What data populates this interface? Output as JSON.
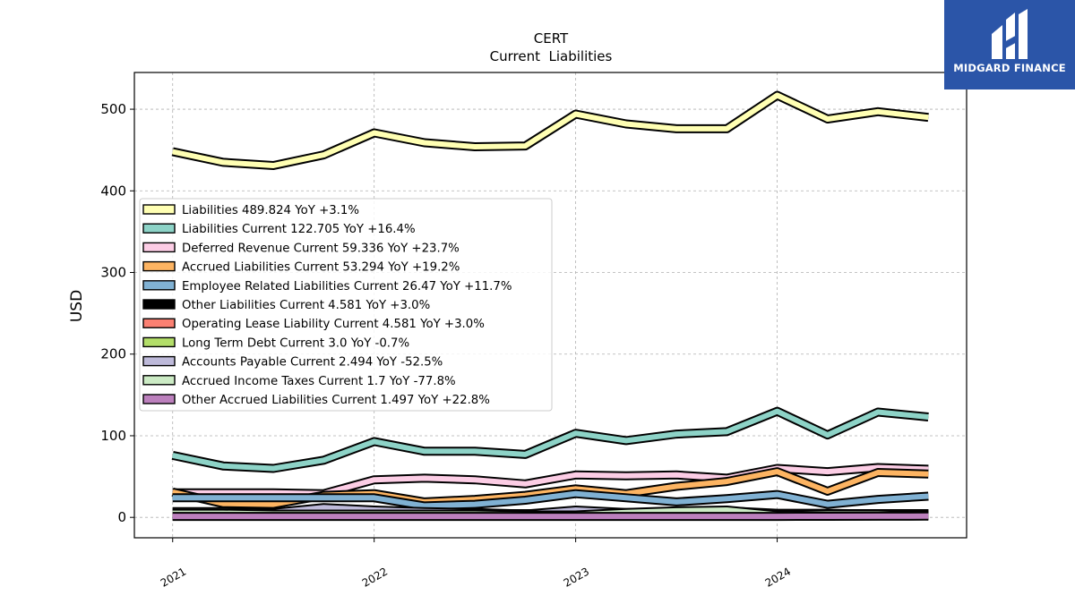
{
  "chart_data": {
    "type": "line",
    "title": "CERT",
    "subtitle": "Current  Liabilities",
    "ylabel": "USD",
    "xlabel": "",
    "ylim": [
      -25,
      545
    ],
    "xlim": [
      2020.81,
      2024.94
    ],
    "yticks": [
      0,
      100,
      200,
      300,
      400,
      500
    ],
    "xticks": [
      {
        "value": 2021.0,
        "label": "2021"
      },
      {
        "value": 2022.0,
        "label": "2022"
      },
      {
        "value": 2023.0,
        "label": "2023"
      },
      {
        "value": 2024.0,
        "label": "2024"
      }
    ],
    "grid": true,
    "legend_position": "center-left",
    "x": [
      2021.0,
      2021.25,
      2021.5,
      2021.75,
      2022.0,
      2022.25,
      2022.5,
      2022.75,
      2023.0,
      2023.25,
      2023.5,
      2023.75,
      2024.0,
      2024.25,
      2024.5,
      2024.75
    ],
    "series": [
      {
        "name": "Liabilities",
        "legend": "Liabilities  489.824 YoY +3.1%",
        "color": "#ffffb3",
        "values": [
          448,
          435,
          431,
          444,
          471,
          459,
          454,
          455,
          494,
          482,
          476,
          476,
          517,
          488,
          497,
          490
        ]
      },
      {
        "name": "Liabilities Current",
        "legend": "Liabilities Current  122.705 YoY +16.4%",
        "color": "#8dd3c7",
        "values": [
          76,
          63,
          60,
          70,
          93,
          81,
          81,
          77,
          103,
          94,
          102,
          105,
          130,
          101,
          129,
          123
        ]
      },
      {
        "name": "Deferred Revenue Current",
        "legend": "Deferred Revenue Current  59.336 YoY +23.7%",
        "color": "#fccde5",
        "values": [
          30,
          30,
          30,
          29,
          46,
          48,
          46,
          41,
          52,
          51,
          52,
          48,
          60,
          56,
          61,
          59
        ]
      },
      {
        "name": "Accrued Liabilities Current",
        "legend": "Accrued Liabilities Current  53.294 YoY +19.2%",
        "color": "#fdb462",
        "values": [
          31,
          17,
          16,
          27,
          29,
          19,
          22,
          27,
          35,
          29,
          38,
          44,
          56,
          32,
          55,
          53
        ]
      },
      {
        "name": "Employee Related Liabilities Current",
        "legend": "Employee Related Liabilities Current  26.47 YoY +11.7%",
        "color": "#80b1d3",
        "values": [
          24,
          24,
          24,
          24,
          24,
          14,
          16,
          21,
          29,
          24,
          19,
          23,
          28,
          16,
          22,
          26
        ]
      },
      {
        "name": "Other Liabilities Current",
        "legend": "Other Liabilities Current  4.581 YoY +3.0%",
        "color": "#000000",
        "values": [
          4.4,
          4.4,
          4.5,
          4.5,
          4.5,
          4.5,
          4.5,
          4.5,
          4.5,
          4.5,
          4.5,
          4.5,
          4.5,
          4.5,
          4.6,
          4.6
        ]
      },
      {
        "name": "Operating Lease Liability Current",
        "legend": "Operating Lease Liability Current  4.581 YoY +3.0%",
        "color": "#fb8072",
        "values": [
          4.4,
          4.4,
          4.5,
          4.5,
          4.5,
          4.5,
          4.5,
          4.5,
          4.5,
          4.5,
          4.5,
          4.5,
          4.5,
          4.5,
          4.6,
          4.6
        ]
      },
      {
        "name": "Long Term Debt Current",
        "legend": "Long Term Debt Current  3.0 YoY -0.7%",
        "color": "#b3de69",
        "values": [
          3.0,
          3.0,
          3.0,
          3.0,
          3.0,
          3.0,
          3.0,
          3.0,
          3.0,
          3.0,
          3.0,
          3.0,
          3.0,
          3.0,
          3.0,
          3.0
        ]
      },
      {
        "name": "Accounts Payable Current",
        "legend": "Accounts Payable Current  2.494 YoY -52.5%",
        "color": "#bebada",
        "values": [
          7,
          7,
          6,
          12,
          9,
          7,
          6,
          4,
          9,
          6,
          6,
          8,
          5,
          5,
          4,
          2.5
        ]
      },
      {
        "name": "Accrued Income Taxes Current",
        "legend": "Accrued Income Taxes Current  1.7 YoY -77.8%",
        "color": "#ccebc5",
        "values": [
          5,
          5,
          4,
          4,
          4,
          4,
          4,
          3,
          3,
          6,
          8,
          9,
          3,
          4,
          4,
          1.7
        ]
      },
      {
        "name": "Other Accrued Liabilities Current",
        "legend": "Other Accrued Liabilities Current  1.497 YoY +22.8%",
        "color": "#bc80bd",
        "values": [
          1.2,
          1.2,
          1.2,
          1.2,
          1.2,
          1.2,
          1.2,
          1.2,
          1.2,
          1.2,
          1.2,
          1.2,
          1.2,
          1.3,
          1.4,
          1.5
        ]
      }
    ]
  },
  "logo": {
    "text": "MIDGARD FINANCE"
  }
}
